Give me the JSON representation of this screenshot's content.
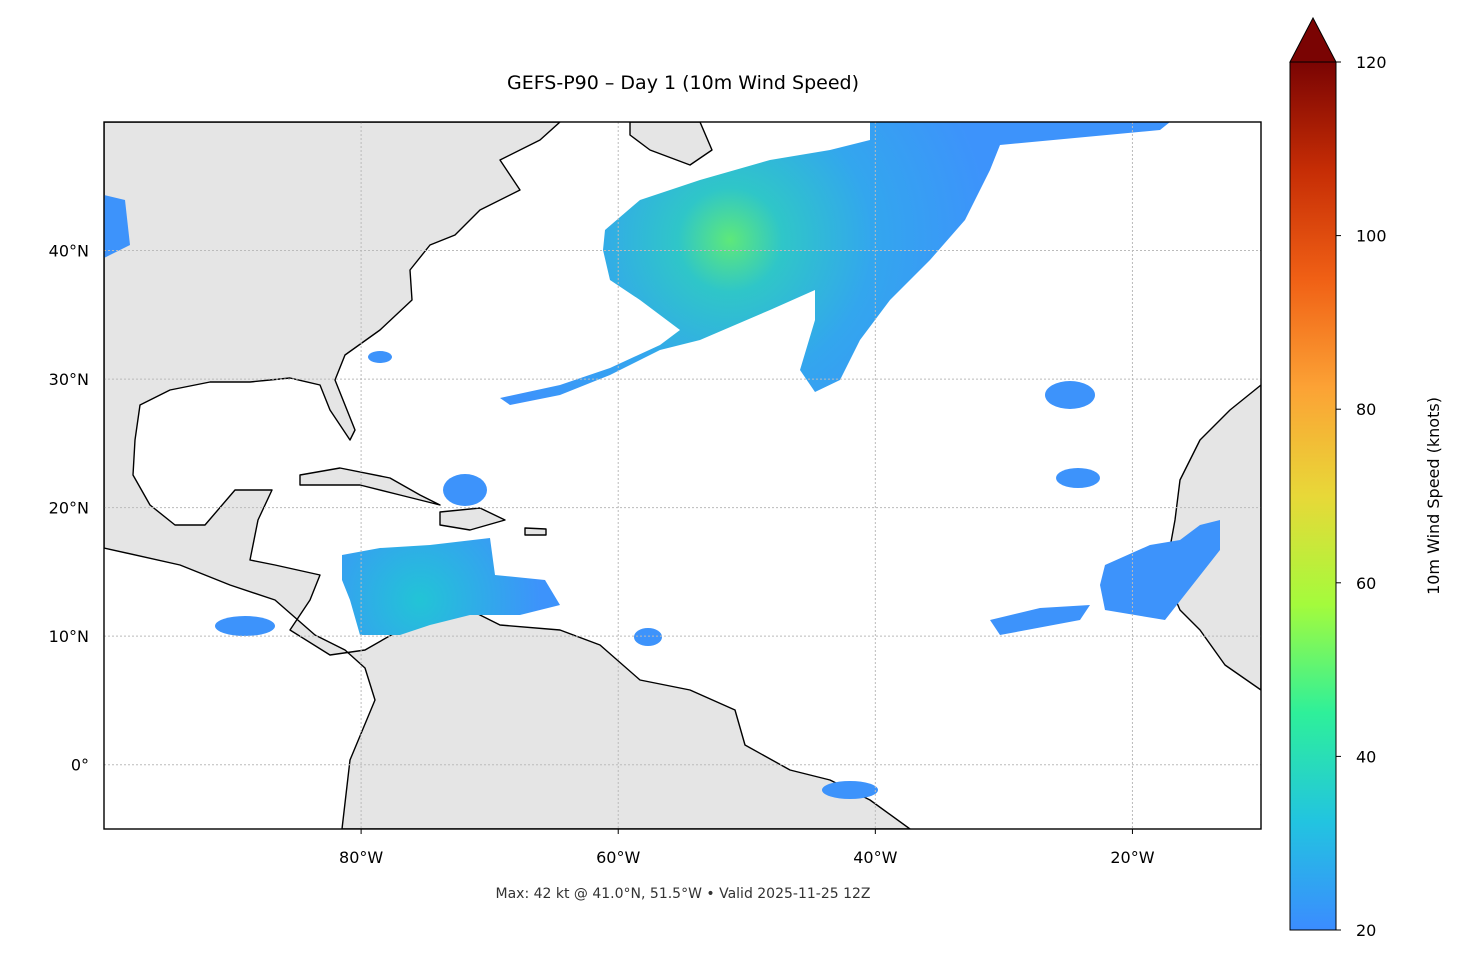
{
  "chart_data": {
    "type": "map",
    "title": "GEFS-P90 – Day 1 (10m Wind Speed)",
    "annotation": "Max: 42 kt @ 41.0°N, 51.5°W • Valid 2025-11-25 12Z",
    "xlim": [
      -100,
      -10
    ],
    "ylim": [
      -5,
      50
    ],
    "xticks": [
      {
        "value": -80,
        "label": "80°W"
      },
      {
        "value": -60,
        "label": "60°W"
      },
      {
        "value": -40,
        "label": "40°W"
      },
      {
        "value": -20,
        "label": "20°W"
      }
    ],
    "yticks": [
      {
        "value": 0,
        "label": "0°"
      },
      {
        "value": 10,
        "label": "10°N"
      },
      {
        "value": 20,
        "label": "20°N"
      },
      {
        "value": 30,
        "label": "30°N"
      },
      {
        "value": 40,
        "label": "40°N"
      }
    ],
    "grid": true,
    "colorbar": {
      "label": "10m Wind Speed (knots)",
      "lim": [
        20,
        120
      ],
      "ticks": [
        20,
        40,
        60,
        80,
        100,
        120
      ],
      "extend": "max",
      "colors": [
        "#3b8cff",
        "#22c4e0",
        "#2ef09a",
        "#a4fb3c",
        "#e8d838",
        "#fca235",
        "#f06015",
        "#c62d05",
        "#7a0403"
      ]
    }
  }
}
